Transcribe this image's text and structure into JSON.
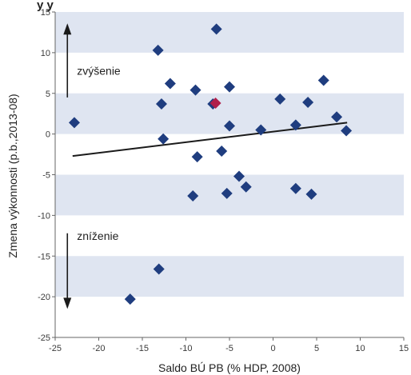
{
  "chart_data": {
    "type": "scatter",
    "partial_header": "y y",
    "xlabel": "Saldo BÚ PB (% HDP, 2008)",
    "ylabel": "Zmena výkonnosti (p.b.,2013-08)",
    "xlim": [
      -25,
      15
    ],
    "ylim": [
      -25,
      15
    ],
    "x_ticks": [
      -25,
      -20,
      -15,
      -10,
      -5,
      0,
      5,
      10,
      15
    ],
    "y_ticks": [
      -25,
      -20,
      -15,
      -10,
      -5,
      0,
      5,
      10,
      15
    ],
    "x_tick_labels": [
      "-25",
      "-20",
      "-15",
      "-10",
      "-5",
      "0",
      "5",
      "10",
      "15"
    ],
    "y_tick_labels": [
      "-25",
      "-20",
      "-15",
      "-10",
      "-5",
      "0",
      "5",
      "10",
      "15"
    ],
    "grid": false,
    "bands": [
      {
        "from": 10,
        "to": 15
      },
      {
        "from": 0,
        "to": 5
      },
      {
        "from": -10,
        "to": -5
      },
      {
        "from": -20,
        "to": -15
      }
    ],
    "points": [
      {
        "x": -22.8,
        "y": 1.4
      },
      {
        "x": -13.2,
        "y": 10.3
      },
      {
        "x": -12.8,
        "y": 3.7
      },
      {
        "x": -12.6,
        "y": -0.6
      },
      {
        "x": -11.8,
        "y": 6.2
      },
      {
        "x": -8.9,
        "y": 5.4
      },
      {
        "x": -8.7,
        "y": -2.8
      },
      {
        "x": -9.2,
        "y": -7.6
      },
      {
        "x": -6.5,
        "y": 12.9
      },
      {
        "x": -6.9,
        "y": 3.7
      },
      {
        "x": -5.9,
        "y": -2.1
      },
      {
        "x": -5.0,
        "y": 5.8
      },
      {
        "x": -5.0,
        "y": 1.0
      },
      {
        "x": -5.3,
        "y": -7.3
      },
      {
        "x": -3.9,
        "y": -5.2
      },
      {
        "x": -3.1,
        "y": -6.5
      },
      {
        "x": -1.4,
        "y": 0.5
      },
      {
        "x": 0.8,
        "y": 4.3
      },
      {
        "x": 2.6,
        "y": 1.1
      },
      {
        "x": 2.6,
        "y": -6.7
      },
      {
        "x": 4.0,
        "y": 3.9
      },
      {
        "x": 4.4,
        "y": -7.4
      },
      {
        "x": 5.8,
        "y": 6.6
      },
      {
        "x": 7.3,
        "y": 2.1
      },
      {
        "x": 8.4,
        "y": 0.4
      },
      {
        "x": -13.1,
        "y": -16.6
      },
      {
        "x": -16.4,
        "y": -20.3
      }
    ],
    "highlight_point": {
      "x": -6.6,
      "y": 3.8
    },
    "trendline": {
      "x1": -23,
      "y1": -2.7,
      "x2": 8.5,
      "y2": 1.4
    },
    "annotations": [
      {
        "text": "zvýšenie",
        "x": -22.5,
        "y": 7.3
      },
      {
        "text": "zníženie",
        "x": -22.5,
        "y": -13.0
      }
    ],
    "arrows": [
      {
        "direction": "up",
        "x": -23.6,
        "y_from": 4.5,
        "y_to": 13.4
      },
      {
        "direction": "down",
        "x": -23.6,
        "y_from": -12.2,
        "y_to": -21.3
      }
    ],
    "colors": {
      "band": "#dfe5f1",
      "marker": "#1f3d7f",
      "highlight": "#b01f4a",
      "trendline": "#1a1a1a",
      "axis": "#666666"
    }
  }
}
